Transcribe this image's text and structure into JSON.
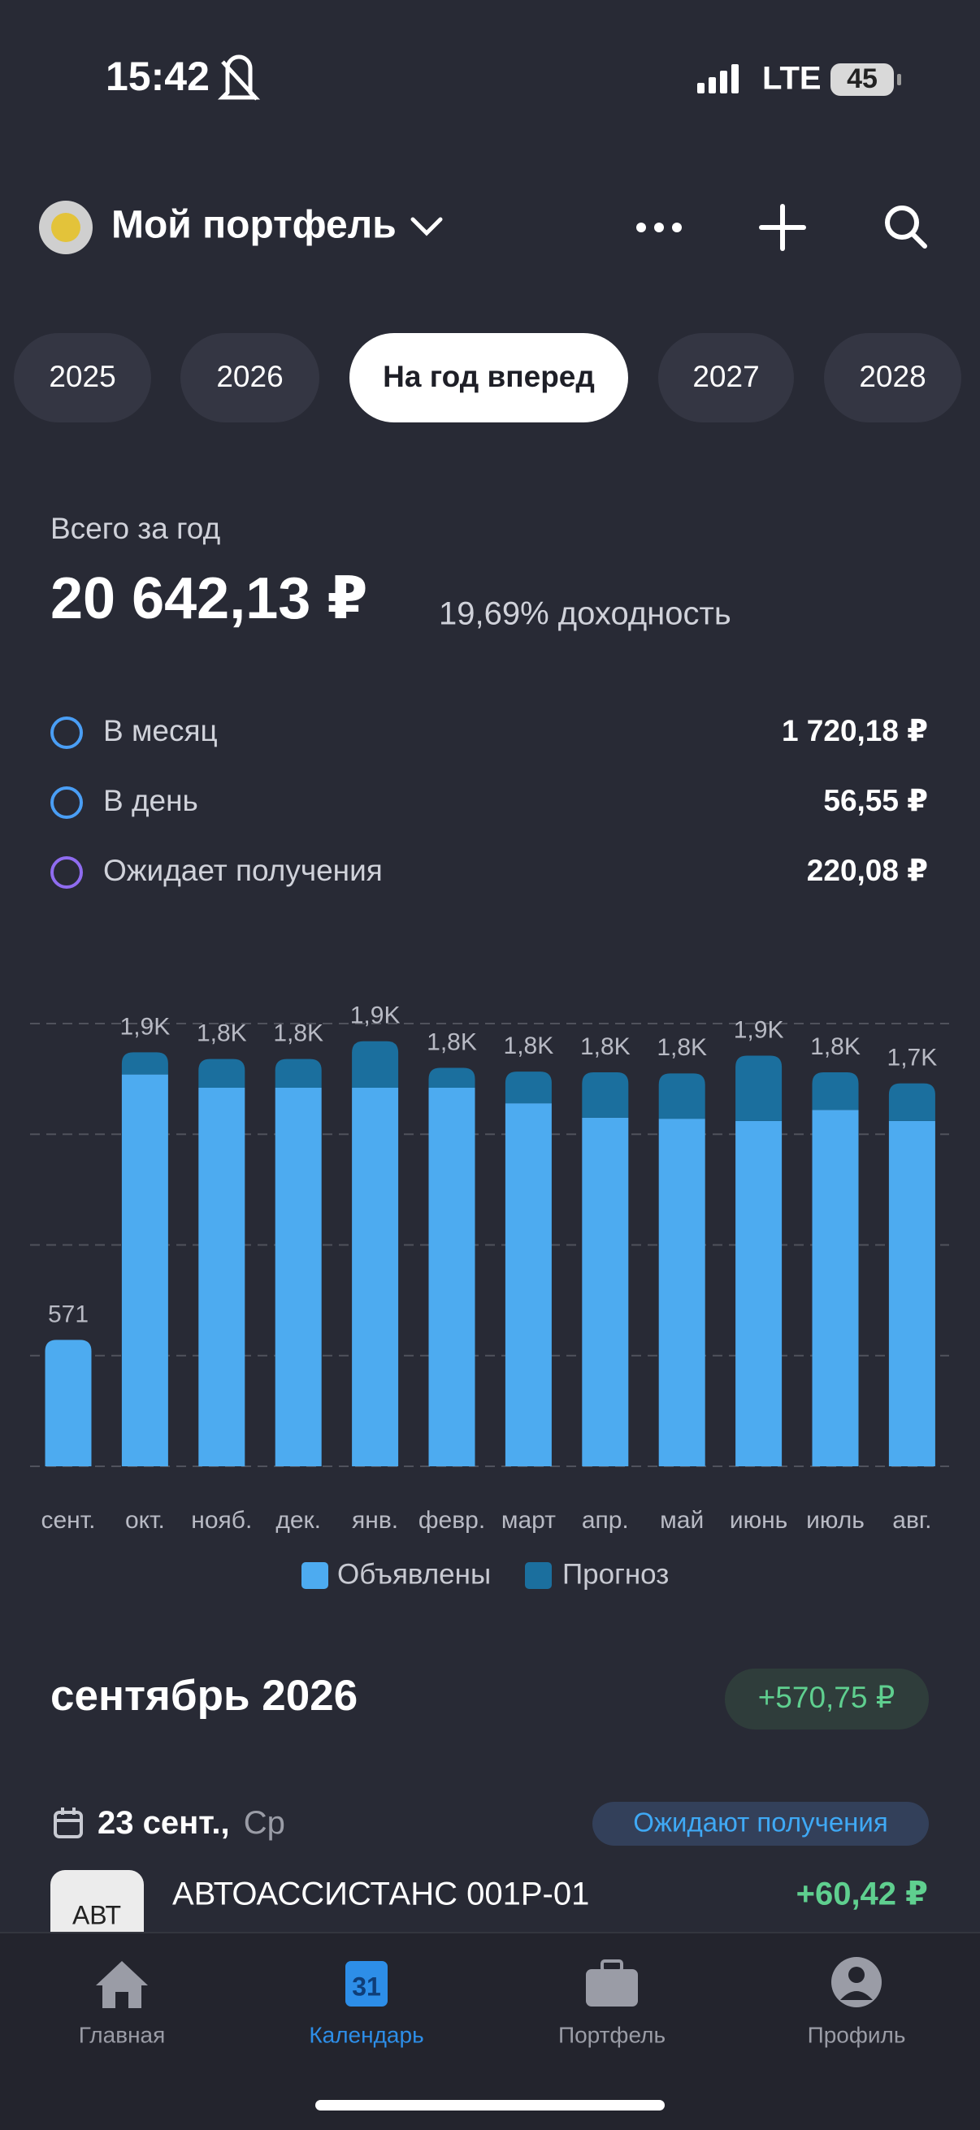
{
  "status_bar": {
    "time": "15:42",
    "network": "LTE",
    "battery": "45"
  },
  "header": {
    "title": "Мой портфель"
  },
  "tabs": [
    "2025",
    "2026",
    "На год вперед",
    "2027",
    "2028"
  ],
  "active_tab": 2,
  "summary": {
    "label": "Всего за год",
    "total": "20 642,13 ₽",
    "yield": "19,69% доходность",
    "rows": [
      {
        "label": "В месяц",
        "value": "1 720,18 ₽",
        "color": "#4a9ef5"
      },
      {
        "label": "В день",
        "value": "56,55 ₽",
        "color": "#4a9ef5"
      },
      {
        "label": "Ожидает получения",
        "value": "220,08 ₽",
        "color": "#8f6cf0"
      }
    ]
  },
  "chart_data": {
    "type": "bar",
    "stacked": true,
    "categories": [
      "сент.",
      "окт.",
      "нояб.",
      "дек.",
      "янв.",
      "февр.",
      "март",
      "апр.",
      "май",
      "июнь",
      "июль",
      "авг."
    ],
    "series": [
      {
        "name": "Объявлены",
        "color": "#4dabf0",
        "values": [
          571,
          1770,
          1710,
          1710,
          1710,
          1710,
          1640,
          1575,
          1570,
          1560,
          1610,
          1560
        ]
      },
      {
        "name": "Прогноз",
        "color": "#1b6f9e",
        "values": [
          0,
          100,
          130,
          130,
          210,
          90,
          143,
          205,
          205,
          295,
          170,
          170
        ]
      }
    ],
    "value_labels": [
      "571",
      "1,9K",
      "1,8K",
      "1,8K",
      "1,9K",
      "1,8K",
      "1,8K",
      "1,8K",
      "1,8K",
      "1,9K",
      "1,8K",
      "1,7K"
    ],
    "ylim": [
      0,
      2000
    ],
    "yticks": [
      0,
      500,
      1000,
      1500,
      2000
    ],
    "grid": true,
    "legend": "bottom"
  },
  "section": {
    "title": "сентябрь 2026",
    "total": "+570,75 ₽"
  },
  "day": {
    "date": "23 сент.,",
    "weekday": "Ср",
    "status": "Ожидают получения"
  },
  "item": {
    "ticker": "АВТ",
    "name": "АВТОАССИСТАНС 001Р-01",
    "amount": "+60,42 ₽"
  },
  "nav": [
    {
      "label": "Главная"
    },
    {
      "label": "Календарь",
      "badge": "31"
    },
    {
      "label": "Портфель"
    },
    {
      "label": "Профиль"
    }
  ],
  "active_nav": 1
}
